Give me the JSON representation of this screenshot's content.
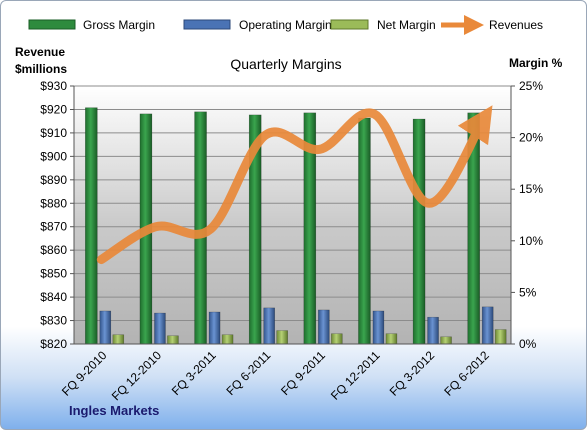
{
  "chart_data": {
    "type": "bar",
    "title": "Quarterly Margins",
    "footer": "Ingles Markets",
    "left_axis_title_line1": "Revenue",
    "left_axis_title_line2": "$millions",
    "right_axis_title": "Margin %",
    "categories": [
      "FQ 9-2010",
      "FQ 12-2010",
      "FQ 3-2011",
      "FQ 6-2011",
      "FQ 9-2011",
      "FQ 12-2011",
      "FQ 3-2012",
      "FQ 6-2012"
    ],
    "left_axis": {
      "min": 820,
      "max": 930,
      "step": 10,
      "format": "$"
    },
    "right_axis": {
      "min": 0,
      "max": 25,
      "step": 5,
      "format": "%"
    },
    "series": [
      {
        "name": "Gross Margin",
        "type": "bar",
        "axis": "right",
        "color": "#2e8b3e",
        "values": [
          22.9,
          22.3,
          22.5,
          22.2,
          22.4,
          21.9,
          21.8,
          22.4
        ]
      },
      {
        "name": "Operating Margin",
        "type": "bar",
        "axis": "right",
        "color": "#4a73b5",
        "values": [
          3.2,
          3.0,
          3.1,
          3.5,
          3.3,
          3.2,
          2.6,
          3.6
        ]
      },
      {
        "name": "Net Margin",
        "type": "bar",
        "axis": "right",
        "color": "#9bbb59",
        "values": [
          0.9,
          0.8,
          0.9,
          1.3,
          1.0,
          1.0,
          0.7,
          1.4
        ]
      },
      {
        "name": "Revenues",
        "type": "line",
        "axis": "left",
        "color": "#e9893a",
        "values": [
          856,
          870,
          869,
          909,
          903,
          918,
          880,
          916
        ]
      }
    ],
    "legend_position": "top",
    "grid": true
  }
}
